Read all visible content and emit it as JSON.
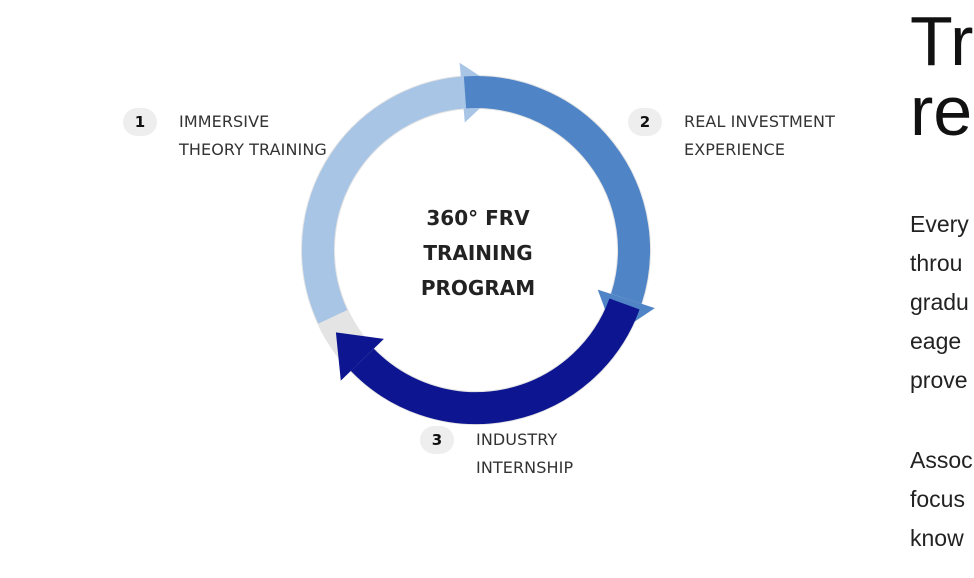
{
  "diagram": {
    "center": {
      "lines": [
        "360° FRV",
        "TRAINING",
        "PROGRAM"
      ]
    },
    "steps": [
      {
        "number": "1",
        "lines": [
          "IMMERSIVE",
          "THEORY TRAINING"
        ]
      },
      {
        "number": "2",
        "lines": [
          "REAL INVESTMENT",
          "EXPERIENCE"
        ]
      },
      {
        "number": "3",
        "lines": [
          "INDUSTRY",
          "INTERNSHIP"
        ]
      }
    ],
    "colors": {
      "ring": "#e4e4e4",
      "segment_1": "#a8c5e6",
      "segment_2": "#4f84c6",
      "segment_3": "#0d1690",
      "badge": "#eeeeee"
    }
  },
  "side_panel": {
    "heading_lines": [
      "Tra",
      "re"
    ],
    "paragraph_1": [
      "Every",
      "throu",
      "gradu",
      "eage",
      "prove"
    ],
    "paragraph_2": [
      "Assoc",
      "focus",
      "know"
    ]
  }
}
